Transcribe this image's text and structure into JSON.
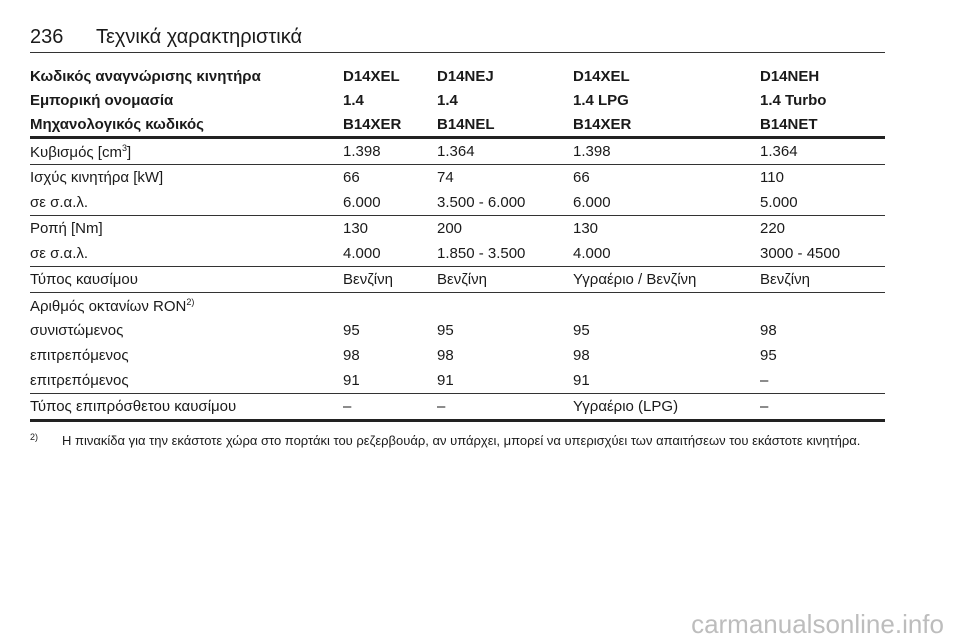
{
  "header": {
    "page_number": "236",
    "title": "Τεχνικά χαρακτηριστικά"
  },
  "table": {
    "header_rows": [
      [
        "Κωδικός αναγνώρισης κινητήρα",
        "D14XEL",
        "D14NEJ",
        "D14XEL",
        "D14NEH"
      ],
      [
        "Εμπορική ονομασία",
        "1.4",
        "1.4",
        "1.4 LPG",
        "1.4 Turbo"
      ],
      [
        "Μηχανολογικός κωδικός",
        "B14XER",
        "B14NEL",
        "B14XER",
        "B14NET"
      ]
    ],
    "groups": [
      [
        [
          {
            "text": "Κυβισμός [cm",
            "sup": "3",
            "after": "]"
          },
          "1.398",
          "1.364",
          "1.398",
          "1.364"
        ]
      ],
      [
        [
          "Ισχύς κινητήρα [kW]",
          "66",
          "74",
          "66",
          "110"
        ],
        [
          "σε σ.α.λ.",
          "6.000",
          "3.500 - 6.000",
          "6.000",
          "5.000"
        ]
      ],
      [
        [
          "Ροπή [Nm]",
          "130",
          "200",
          "130",
          "220"
        ],
        [
          "σε σ.α.λ.",
          "4.000",
          "1.850 - 3.500",
          "4.000",
          "3000 - 4500"
        ]
      ],
      [
        [
          "Τύπος καυσίμου",
          "Βενζίνη",
          "Βενζίνη",
          "Υγραέριο / Βενζίνη",
          "Βενζίνη"
        ]
      ],
      [
        [
          {
            "text": "Αριθμός οκτανίων RON",
            "sup": "2)"
          }
        ],
        [
          "συνιστώμενος",
          "95",
          "95",
          "95",
          "98"
        ],
        [
          "επιτρεπόμενος",
          "98",
          "98",
          "98",
          "95"
        ],
        [
          "επιτρεπόμενος",
          "91",
          "91",
          "91",
          "–"
        ]
      ],
      [
        [
          "Τύπος επιπρόσθετου καυσίμου",
          "–",
          "–",
          "Υγραέριο (LPG)",
          "–"
        ]
      ]
    ]
  },
  "footnote": {
    "marker": "2)",
    "text": "Η πινακίδα για την εκάστοτε χώρα στο πορτάκι του ρεζερβουάρ, αν υπάρχει, μπορεί να υπερισχύει των απαιτήσεων του εκάστοτε κινητήρα."
  },
  "watermark": "carmanualsonline.info"
}
